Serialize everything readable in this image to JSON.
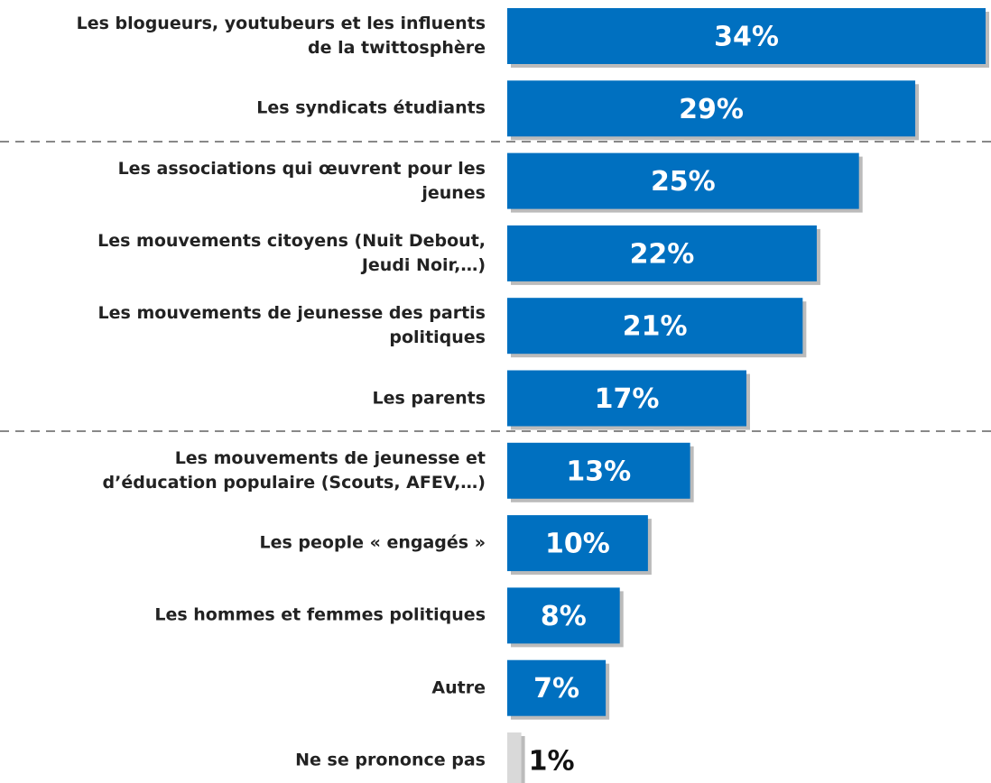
{
  "chart_data": {
    "type": "barh",
    "categories": [
      "Les blogueurs, youtubeurs et les influents\nde la twittosphère",
      "Les syndicats étudiants",
      "Les associations qui œuvrent pour les\njeunes",
      "Les mouvements citoyens (Nuit Debout,\nJeudi Noir,…)",
      "Les mouvements de jeunesse des partis\npolitiques",
      "Les parents",
      "Les mouvements de jeunesse et\nd’éducation populaire (Scouts, AFEV,…)",
      "Les people « engagés »",
      "Les hommes et femmes politiques",
      "Autre",
      "Ne se prononce pas"
    ],
    "values": [
      34,
      29,
      25,
      22,
      21,
      17,
      13,
      10,
      8,
      7,
      1
    ],
    "value_labels": [
      "34%",
      "29%",
      "25%",
      "22%",
      "21%",
      "17%",
      "13%",
      "10%",
      "8%",
      "7%",
      "1%"
    ],
    "colors": [
      "#0070c0",
      "#0070c0",
      "#0070c0",
      "#0070c0",
      "#0070c0",
      "#0070c0",
      "#0070c0",
      "#0070c0",
      "#0070c0",
      "#0070c0",
      "#d9d9d9"
    ],
    "xlim": [
      0,
      34
    ]
  }
}
